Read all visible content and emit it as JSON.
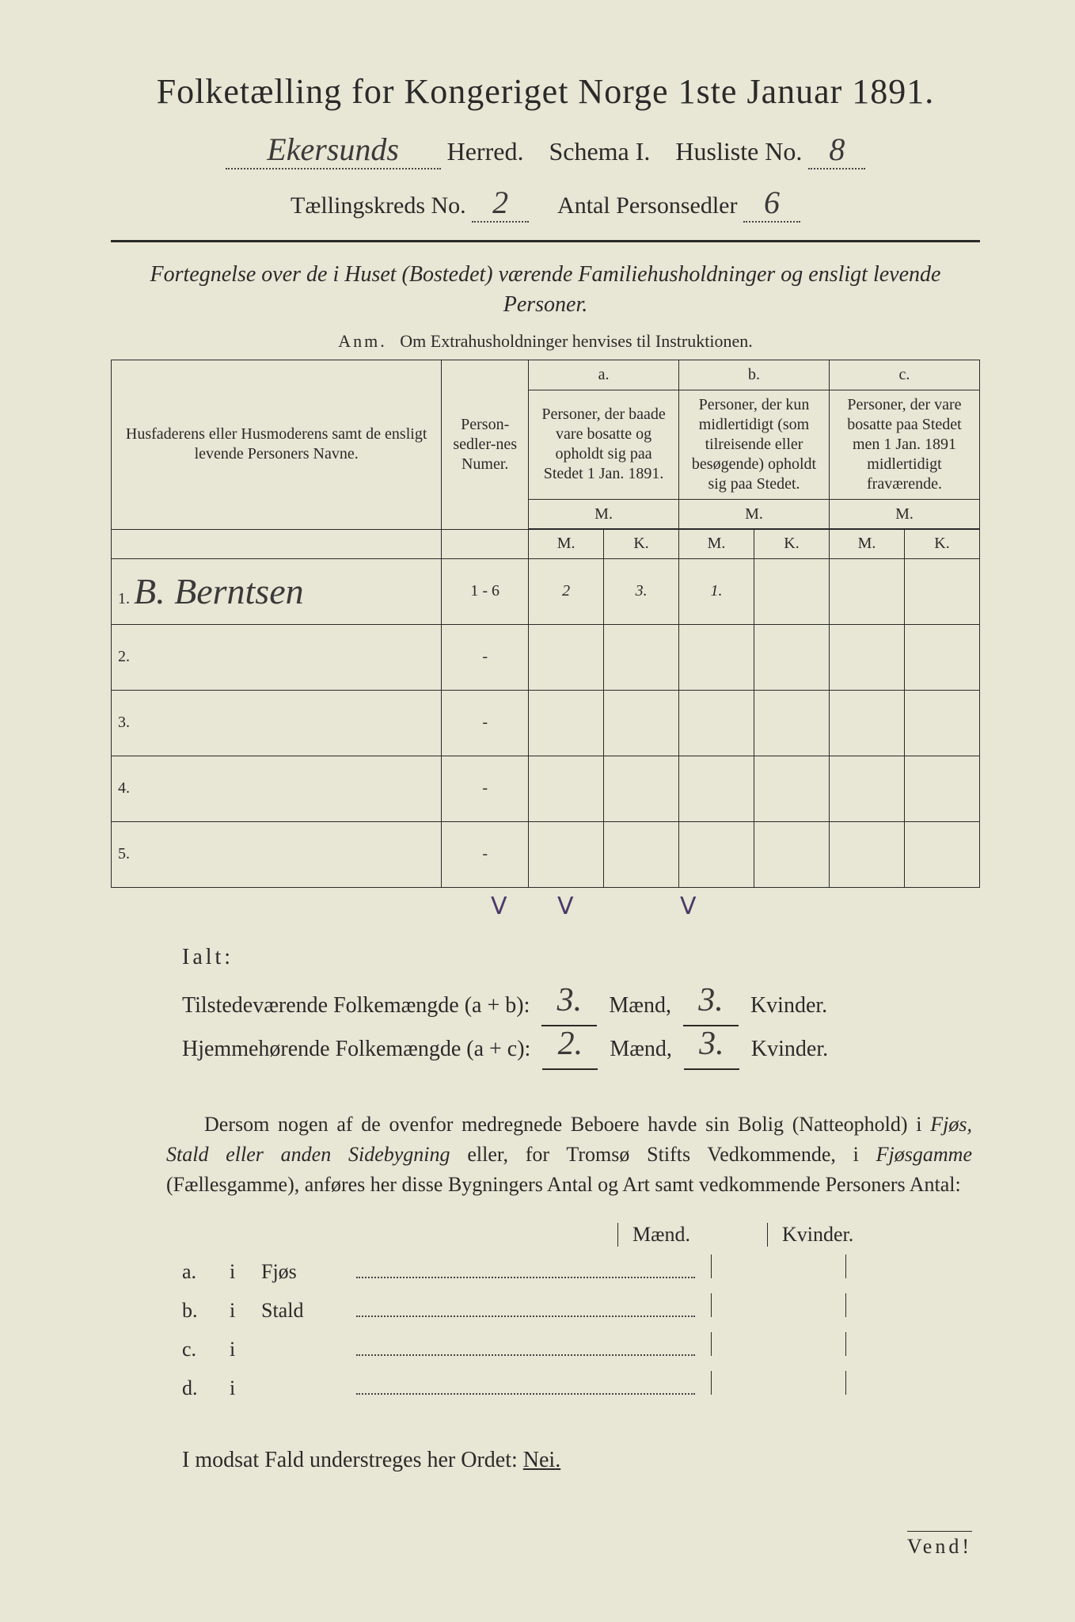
{
  "title": "Folketælling for Kongeriget Norge 1ste Januar 1891.",
  "herred_value": "Ekersunds",
  "herred_label": "Herred.",
  "schema_label": "Schema I.",
  "husliste_label": "Husliste No.",
  "husliste_no": "8",
  "kreds_label": "Tællingskreds No.",
  "kreds_no": "2",
  "antal_label": "Antal Personsedler",
  "antal_val": "6",
  "subtitle": "Fortegnelse over de i Huset (Bostedet) værende Familiehusholdninger og ensligt levende Personer.",
  "anm_lead": "Anm.",
  "anm_text": "Om Extrahusholdninger henvises til Instruktionen.",
  "headers": {
    "names": "Husfaderens eller Husmoderens samt de ensligt levende Personers Navne.",
    "numer": "Person-sedler-nes Numer.",
    "col_a_head": "a.",
    "col_a": "Personer, der baade vare bosatte og opholdt sig paa Stedet 1 Jan. 1891.",
    "col_b_head": "b.",
    "col_b": "Personer, der kun midlertidigt (som tilreisende eller besøgende) opholdt sig paa Stedet.",
    "col_c_head": "c.",
    "col_c": "Personer, der vare bosatte paa Stedet men 1 Jan. 1891 midlertidigt fraværende.",
    "M": "M.",
    "K": "K."
  },
  "rows": [
    {
      "n": "1.",
      "name": "B. Berntsen",
      "num": "1 - 6",
      "aM": "2",
      "aK": "3.",
      "bM": "1.",
      "bK": "",
      "cM": "",
      "cK": ""
    },
    {
      "n": "2.",
      "name": "",
      "num": "-",
      "aM": "",
      "aK": "",
      "bM": "",
      "bK": "",
      "cM": "",
      "cK": ""
    },
    {
      "n": "3.",
      "name": "",
      "num": "-",
      "aM": "",
      "aK": "",
      "bM": "",
      "bK": "",
      "cM": "",
      "cK": ""
    },
    {
      "n": "4.",
      "name": "",
      "num": "-",
      "aM": "",
      "aK": "",
      "bM": "",
      "bK": "",
      "cM": "",
      "cK": ""
    },
    {
      "n": "5.",
      "name": "",
      "num": "-",
      "aM": "",
      "aK": "",
      "bM": "",
      "bK": "",
      "cM": "",
      "cK": ""
    }
  ],
  "ialt": {
    "title": "Ialt:",
    "line1_label": "Tilstedeværende Folkemængde (a + b):",
    "line1_m": "3.",
    "line1_k": "3.",
    "line2_label": "Hjemmehørende Folkemængde (a + c):",
    "line2_m": "2.",
    "line2_k": "3.",
    "maend": "Mænd,",
    "kvinder": "Kvinder."
  },
  "paragraph_parts": {
    "p1": "Dersom nogen af de ovenfor medregnede Beboere havde sin Bolig (Natteophold) i ",
    "p2": "Fjøs, Stald eller anden Sidebygning",
    "p3": " eller, for Tromsø Stifts Vedkommende, i ",
    "p4": "Fjøsgamme",
    "p5": " (Fællesgamme), anføres her disse Bygningers Antal og Art samt vedkommende Personers Antal:"
  },
  "mk_labels": {
    "maend": "Mænd.",
    "kvinder": "Kvinder."
  },
  "abcd": [
    {
      "l": "a.",
      "i": "i",
      "w": "Fjøs"
    },
    {
      "l": "b.",
      "i": "i",
      "w": "Stald"
    },
    {
      "l": "c.",
      "i": "i",
      "w": ""
    },
    {
      "l": "d.",
      "i": "i",
      "w": ""
    }
  ],
  "final": {
    "text": "I modsat Fald understreges her Ordet: ",
    "nei": "Nei."
  },
  "vend": "Vend!"
}
